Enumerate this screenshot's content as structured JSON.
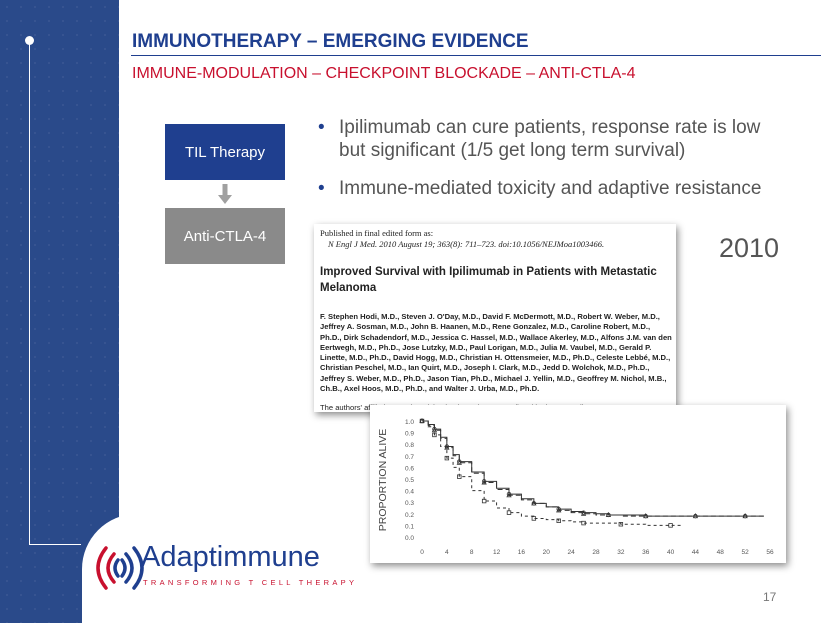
{
  "slide": {
    "title": "IMMUNOTHERAPY – EMERGING EVIDENCE",
    "subtitle": "IMMUNE-MODULATION – CHECKPOINT BLOCKADE – ANTI-CTLA-4",
    "page_number": "17",
    "year": "2010"
  },
  "flow": {
    "box1": "TIL Therapy",
    "box2": "Anti-CTLA-4",
    "box1_color": "#1f3f8f",
    "box2_color": "#8a8a8a",
    "arrow_icon": "arrow-down-icon"
  },
  "bullets": [
    "Ipilimumab can cure patients, response rate is low but significant (1/5 get long term survival)",
    "Immune-mediated toxicity and adaptive resistance"
  ],
  "paper": {
    "published_label": "Published in final edited form as:",
    "citation": "N Engl J Med. 2010 August 19; 363(8): 711–723. doi:10.1056/NEJMoa1003466.",
    "title": "Improved Survival with Ipilimumab in Patients with Metastatic Melanoma",
    "authors": "F. Stephen Hodi, M.D., Steven J. O'Day, M.D., David F. McDermott, M.D., Robert W. Weber, M.D., Jeffrey A. Sosman, M.D., John B. Haanen, M.D., Rene Gonzalez, M.D., Caroline Robert, M.D., Ph.D., Dirk Schadendorf, M.D., Jessica C. Hassel, M.D., Wallace Akerley, M.D., Alfons J.M. van den Eertwegh, M.D., Ph.D., Jose Lutzky, M.D., Paul Lorigan, M.D., Julia M. Vaubel, M.D., Gerald P. Linette, M.D., Ph.D., David Hogg, M.D., Christian H. Ottensmeier, M.D., Ph.D., Celeste Lebbé, M.D., Christian Peschel, M.D., Ian Quirt, M.D., Joseph I. Clark, M.D., Jedd D. Wolchok, M.D., Ph.D., Jeffrey S. Weber, M.D., Ph.D., Jason Tian, Ph.D., Michael J. Yellin, M.D., Geoffrey M. Nichol, M.B., Ch.B., Axel Hoos, M.D., Ph.D., and Walter J. Urba, M.D., Ph.D.",
    "affiliations": "The authors' affiliations and participating investigators are listed in the Appendix"
  },
  "chart_data": {
    "type": "line",
    "title": "",
    "xlabel": "",
    "ylabel": "PROPORTION ALIVE",
    "xlim": [
      0,
      56
    ],
    "ylim": [
      0,
      1
    ],
    "xticks": [
      0,
      4,
      8,
      12,
      16,
      20,
      24,
      28,
      32,
      36,
      40,
      44,
      48,
      52,
      56
    ],
    "yticks": [
      "0.0",
      "0.1",
      "0.2",
      "0.3",
      "0.4",
      "0.5",
      "0.6",
      "0.7",
      "0.8",
      "0.9",
      "1.0"
    ],
    "grid": false,
    "series": [
      {
        "x": [
          0,
          1,
          2,
          3,
          4,
          5,
          6,
          8,
          10,
          12,
          14,
          16,
          18,
          20,
          22,
          24,
          26,
          28,
          30,
          32,
          36,
          40,
          44,
          48,
          52,
          55
        ],
        "y": [
          1.0,
          0.97,
          0.93,
          0.86,
          0.78,
          0.71,
          0.65,
          0.56,
          0.48,
          0.42,
          0.37,
          0.33,
          0.29,
          0.26,
          0.24,
          0.22,
          0.21,
          0.2,
          0.19,
          0.19,
          0.18,
          0.18,
          0.18,
          0.18,
          0.18,
          0.18
        ]
      },
      {
        "x": [
          0,
          1,
          2,
          3,
          4,
          5,
          6,
          8,
          10,
          12,
          14,
          16,
          18,
          20,
          22,
          24,
          26,
          28,
          30,
          32,
          36,
          40,
          44,
          48,
          52,
          55
        ],
        "y": [
          1.0,
          0.96,
          0.92,
          0.85,
          0.77,
          0.7,
          0.64,
          0.55,
          0.47,
          0.41,
          0.36,
          0.32,
          0.29,
          0.26,
          0.23,
          0.21,
          0.2,
          0.19,
          0.19,
          0.18,
          0.18,
          0.18,
          0.18,
          0.18,
          0.18,
          0.18
        ]
      },
      {
        "x": [
          0,
          1,
          2,
          3,
          4,
          5,
          6,
          8,
          10,
          12,
          14,
          16,
          18,
          20,
          22,
          24,
          26,
          28,
          32,
          36,
          40,
          42
        ],
        "y": [
          1.0,
          0.95,
          0.88,
          0.78,
          0.68,
          0.6,
          0.52,
          0.4,
          0.31,
          0.25,
          0.21,
          0.18,
          0.16,
          0.15,
          0.14,
          0.13,
          0.12,
          0.12,
          0.11,
          0.1,
          0.1,
          0.1
        ]
      }
    ],
    "series_styles": [
      {
        "color": "#333333",
        "dash": "",
        "marker": "circle"
      },
      {
        "color": "#333333",
        "dash": "5,3",
        "marker": "triangle"
      },
      {
        "color": "#333333",
        "dash": "3,3",
        "marker": "square"
      }
    ]
  },
  "logo": {
    "name": "Adaptimmune",
    "tagline": "TRANSFORMING T CELL THERAPY",
    "icon": "adaptimmune-logo-icon"
  },
  "colors": {
    "sidebar": "#2a4a8a",
    "title": "#1f3f8f",
    "subtitle": "#c8102e",
    "text": "#555555"
  }
}
